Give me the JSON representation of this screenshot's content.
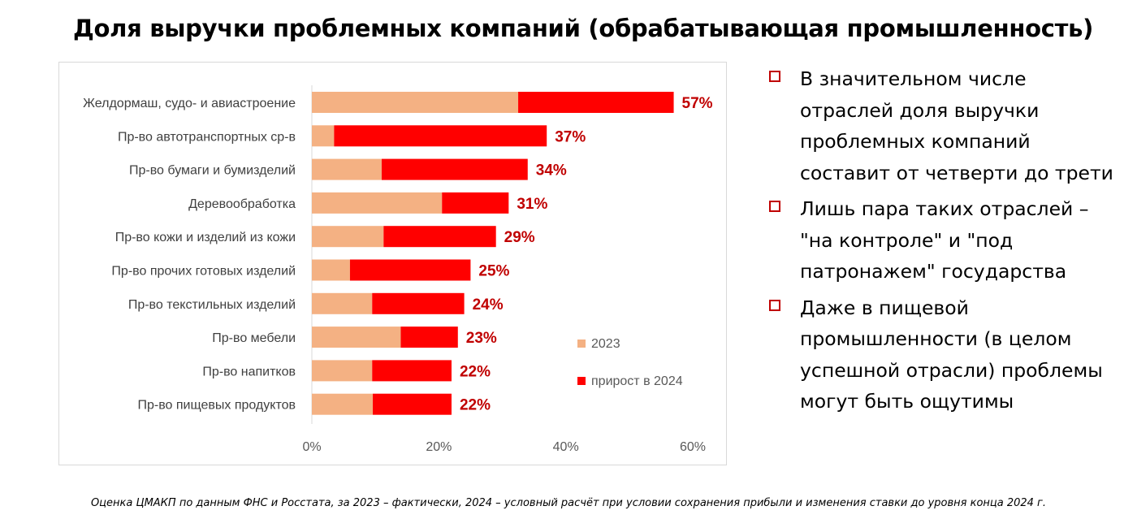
{
  "title": "Доля выручки проблемных компаний (обрабатывающая промышленность)",
  "chart_data": {
    "type": "bar",
    "orientation": "horizontal",
    "stacked": true,
    "categories": [
      "Желдормаш, судо- и авиастроение",
      "Пр-во автотранспортных ср-в",
      "Пр-во бумаги и бумизделий",
      "Деревообработка",
      "Пр-во кожи и изделий из кожи",
      "Пр-во прочих готовых изделий",
      "Пр-во текстильных изделий",
      "Пр-во мебели",
      "Пр-во напитков",
      "Пр-во пищевых продуктов"
    ],
    "series": [
      {
        "name": "2023",
        "color": "#f4b183",
        "values": [
          32.5,
          3.5,
          11,
          20.5,
          11.3,
          6,
          9.5,
          14,
          9.5,
          9.6
        ]
      },
      {
        "name": "прирост в 2024",
        "color": "#ff0000",
        "values": [
          24.5,
          33.5,
          23,
          10.5,
          17.7,
          19,
          14.5,
          9,
          12.5,
          12.4
        ]
      }
    ],
    "total_labels": [
      "57%",
      "37%",
      "34%",
      "31%",
      "29%",
      "25%",
      "24%",
      "23%",
      "22%",
      "22%"
    ],
    "label_color": "#c00000",
    "xlim": [
      0,
      60
    ],
    "xticks": [
      "0%",
      "20%",
      "40%",
      "60%"
    ],
    "grid": false,
    "legend_position": "inside-right"
  },
  "bullets": [
    "В значительном числе отраслей доля выручки проблемных компаний составит от четверти до трети",
    "Лишь пара таких отраслей – \"на контроле\" и \"под патронажем\" государства",
    "Даже в пищевой промышленности (в целом успешной отрасли) проблемы могут быть ощутимы"
  ],
  "footnote": "Оценка ЦМАКП по данным ФНС и Росстата, за 2023 – фактически, 2024 – условный расчёт при условии сохранения прибыли и изменения ставки до уровня конца 2024 г."
}
